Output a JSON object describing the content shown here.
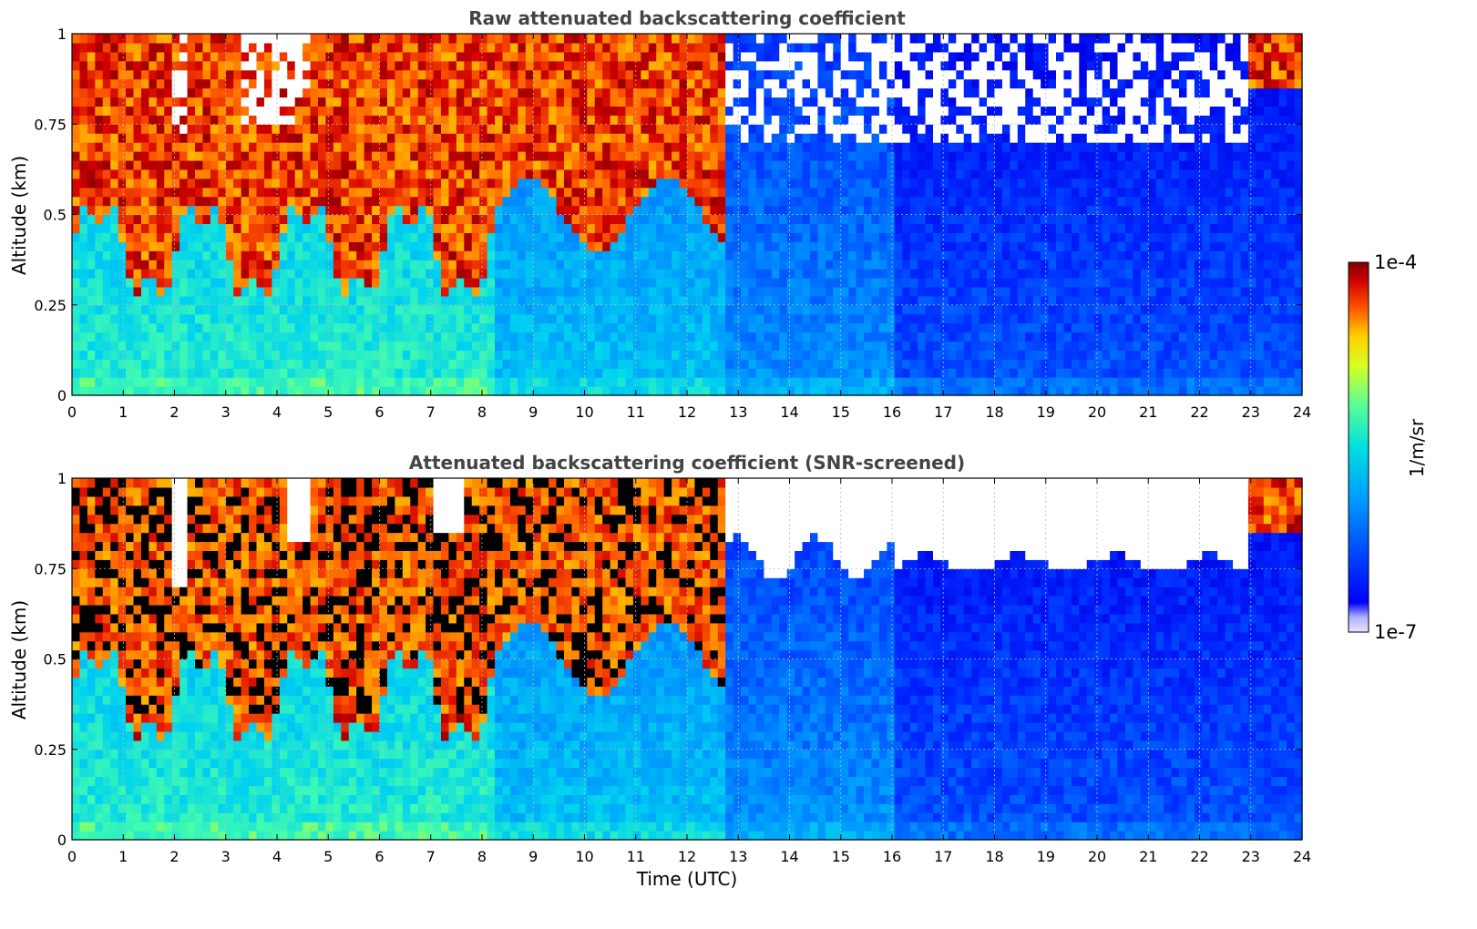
{
  "chart_data": [
    {
      "type": "heatmap",
      "title": "Raw attenuated backscattering coefficient",
      "xlabel": "",
      "ylabel": "Altitude (km)",
      "xlim": [
        0,
        24
      ],
      "ylim": [
        0,
        1
      ],
      "x_ticks": [
        "0",
        "1",
        "2",
        "3",
        "4",
        "5",
        "6",
        "7",
        "8",
        "9",
        "10",
        "11",
        "12",
        "13",
        "14",
        "15",
        "16",
        "17",
        "18",
        "19",
        "20",
        "21",
        "22",
        "23",
        "24"
      ],
      "y_ticks": [
        "0",
        "0.25",
        "0.5",
        "0.75",
        "1"
      ],
      "grid": true,
      "screened": false
    },
    {
      "type": "heatmap",
      "title": "Attenuated backscattering coefficient (SNR-screened)",
      "xlabel": "Time (UTC)",
      "ylabel": "Altitude (km)",
      "xlim": [
        0,
        24
      ],
      "ylim": [
        0,
        1
      ],
      "x_ticks": [
        "0",
        "1",
        "2",
        "3",
        "4",
        "5",
        "6",
        "7",
        "8",
        "9",
        "10",
        "11",
        "12",
        "13",
        "14",
        "15",
        "16",
        "17",
        "18",
        "19",
        "20",
        "21",
        "22",
        "23",
        "24"
      ],
      "y_ticks": [
        "0",
        "0.25",
        "0.5",
        "0.75",
        "1"
      ],
      "grid": true,
      "screened": true
    }
  ],
  "colorbar": {
    "colormap": "jet",
    "min_label": "1e-7",
    "max_label": "1e-4",
    "unit": "1/m/sr",
    "scale": "log",
    "position": "right"
  },
  "colors": {
    "title": "#444444",
    "grid": "#bbbbbb",
    "axis": "#000000"
  }
}
